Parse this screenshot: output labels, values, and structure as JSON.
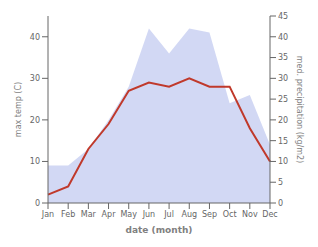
{
  "chart_data": {
    "type": "line",
    "categories": [
      "Jan",
      "Feb",
      "Mar",
      "Apr",
      "May",
      "Jun",
      "Jul",
      "Aug",
      "Sep",
      "Oct",
      "Nov",
      "Dec"
    ],
    "xlabel": "date (month)",
    "ylabel": "max temp (C)",
    "y2label": "med. precipitation (kg/m2)",
    "ylim": [
      0,
      45
    ],
    "yticks": [
      0,
      10,
      20,
      30,
      40
    ],
    "y2lim": [
      0,
      45
    ],
    "y2ticks": [
      0,
      5,
      10,
      15,
      20,
      25,
      30,
      35,
      40,
      45
    ],
    "grid": false,
    "series": [
      {
        "type": "area",
        "axis": "y2",
        "color": "#bfc8ef",
        "values": [
          9,
          9,
          13,
          20,
          28,
          42,
          36,
          42,
          41,
          24,
          26,
          14
        ]
      },
      {
        "type": "line",
        "axis": "y",
        "color": "#c0392b",
        "values": [
          2,
          4,
          13,
          19,
          27,
          29,
          28,
          30,
          28,
          28,
          18,
          10
        ]
      }
    ]
  }
}
